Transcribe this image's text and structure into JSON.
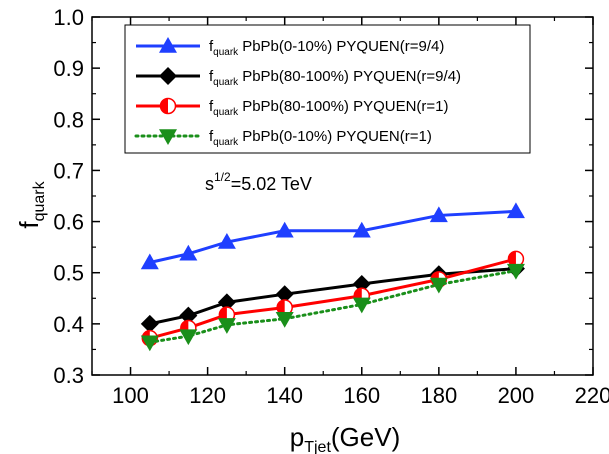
{
  "chart_data": {
    "type": "line",
    "xlabel": {
      "main": "p",
      "sub": "Tjet",
      "rest": "(GeV)"
    },
    "ylabel": {
      "main": "f",
      "sub": "quark"
    },
    "xlim": [
      90,
      220
    ],
    "ylim": [
      0.3,
      1.0
    ],
    "xticks": [
      "100",
      "120",
      "140",
      "160",
      "180",
      "200",
      "220"
    ],
    "yticks": [
      "0.3",
      "0.4",
      "0.5",
      "0.6",
      "0.7",
      "0.8",
      "0.9",
      "1.0"
    ],
    "x": [
      105,
      115,
      125,
      140,
      160,
      180,
      200
    ],
    "annotation": {
      "base": "s",
      "sup": "1/2",
      "rest": "=5.02 TeV"
    },
    "legend_position": "top",
    "series": [
      {
        "name": "PbPb(0-10%) PYQUEN(r=9/4)",
        "legend_prefix": "f",
        "legend_sub": "quark",
        "color": "#1f3fff",
        "marker": "triangle-up",
        "line": "solid",
        "values": [
          0.52,
          0.537,
          0.56,
          0.582,
          0.582,
          0.612,
          0.62
        ]
      },
      {
        "name": "PbPb(80-100%) PYQUEN(r=9/4)",
        "legend_prefix": "f",
        "legend_sub": "quark",
        "color": "#000000",
        "marker": "diamond",
        "line": "solid",
        "values": [
          0.4,
          0.416,
          0.442,
          0.458,
          0.478,
          0.497,
          0.508
        ]
      },
      {
        "name": "PbPb(80-100%) PYQUEN(r=1)",
        "legend_prefix": "f",
        "legend_sub": "quark",
        "color": "#ff0000",
        "marker": "half-circle",
        "line": "solid",
        "values": [
          0.372,
          0.392,
          0.418,
          0.432,
          0.455,
          0.487,
          0.527
        ]
      },
      {
        "name": "PbPb(0-10%) PYQUEN(r=1)",
        "legend_prefix": "f",
        "legend_sub": "quark",
        "color": "#1a8f1a",
        "marker": "triangle-down",
        "line": "dotted",
        "values": [
          0.364,
          0.376,
          0.398,
          0.41,
          0.438,
          0.477,
          0.504
        ]
      }
    ]
  }
}
